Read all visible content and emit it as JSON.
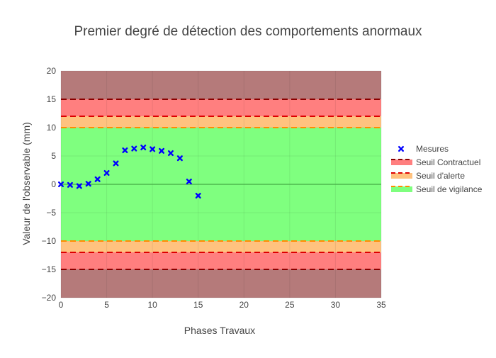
{
  "chart_data": {
    "type": "scatter",
    "title": "Premier degré de détection des comportements anormaux",
    "xlabel": "Phases Travaux",
    "ylabel": "Valeur de l'observable (mm)",
    "xlim": [
      0,
      35
    ],
    "ylim": [
      -20,
      20
    ],
    "x_ticks": [
      0,
      5,
      10,
      15,
      20,
      25,
      30,
      35
    ],
    "y_ticks": [
      -20,
      -15,
      -10,
      -5,
      0,
      5,
      10,
      15,
      20
    ],
    "grid": true,
    "legend_position": "right",
    "series": [
      {
        "name": "Mesures",
        "marker": "x",
        "color": "#0000ff",
        "x": [
          0,
          1,
          2,
          3,
          4,
          5,
          6,
          7,
          8,
          9,
          10,
          11,
          12,
          13,
          14,
          15
        ],
        "y": [
          0,
          -0.1,
          -0.3,
          0.1,
          0.9,
          2.0,
          3.7,
          6.0,
          6.3,
          6.5,
          6.2,
          5.9,
          5.5,
          4.6,
          0.5,
          -2.0
        ]
      }
    ],
    "bands": [
      {
        "name": "Seuil Contractuel",
        "value": 15,
        "fill": "#ff7f7f",
        "line_color": "#8b0000"
      },
      {
        "name": "Seuil d'alerte",
        "value": 12,
        "fill": "#ffc27f",
        "line_color": "#dd0000"
      },
      {
        "name": "Seuil de vigilance",
        "value": 10,
        "fill": "#7fff7f",
        "line_color": "#ff8c00"
      }
    ],
    "outer_fill": "#b57a7a"
  }
}
